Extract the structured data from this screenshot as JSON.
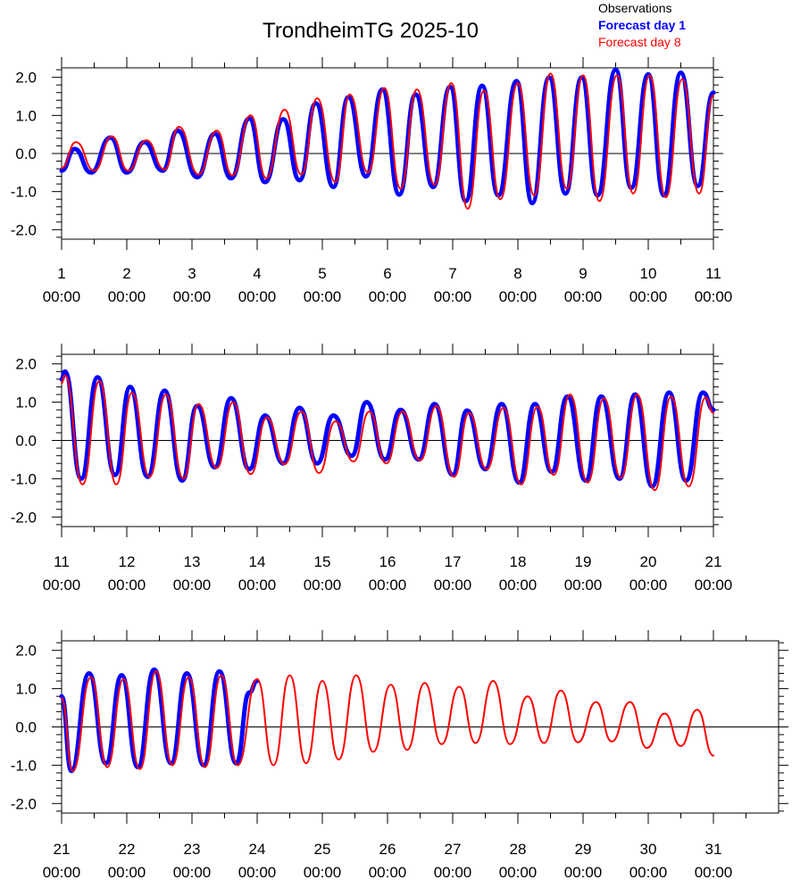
{
  "title": "TrondheimTG 2025-10",
  "legend": [
    {
      "label": "Observations",
      "color": "#000000",
      "bold": false
    },
    {
      "label": "Forecast day 1",
      "color": "#0000ff",
      "bold": true
    },
    {
      "label": "Forecast day 8",
      "color": "#ff0000",
      "bold": false
    }
  ],
  "chart_data": [
    {
      "type": "line",
      "panel": 1,
      "ylim": [
        -2.25,
        2.25
      ],
      "yticks": [
        "2.0",
        "1.0",
        "0.0",
        "-1.0",
        "-2.0"
      ],
      "yvalues": [
        2,
        1,
        0,
        -1,
        -2
      ],
      "xlim": [
        1,
        11
      ],
      "xticks": [
        {
          "day": "1",
          "time": "00:00"
        },
        {
          "day": "2",
          "time": "00:00"
        },
        {
          "day": "3",
          "time": "00:00"
        },
        {
          "day": "4",
          "time": "00:00"
        },
        {
          "day": "5",
          "time": "00:00"
        },
        {
          "day": "6",
          "time": "00:00"
        },
        {
          "day": "7",
          "time": "00:00"
        },
        {
          "day": "8",
          "time": "00:00"
        },
        {
          "day": "9",
          "time": "00:00"
        },
        {
          "day": "10",
          "time": "00:00"
        },
        {
          "day": "11",
          "time": "00:00"
        }
      ],
      "series": [
        {
          "name": "Forecast day 1",
          "color": "#0000ff",
          "x": [
            1.0,
            1.2,
            1.45,
            1.75,
            2.0,
            2.27,
            2.55,
            2.78,
            3.08,
            3.35,
            3.6,
            3.88,
            4.12,
            4.4,
            4.65,
            4.9,
            5.17,
            5.4,
            5.67,
            5.92,
            6.18,
            6.43,
            6.7,
            6.96,
            7.2,
            7.45,
            7.7,
            7.98,
            8.22,
            8.48,
            8.73,
            8.98,
            9.22,
            9.5,
            9.74,
            10.0,
            10.24,
            10.5,
            10.76,
            11.0
          ],
          "y": [
            -0.45,
            0.12,
            -0.5,
            0.42,
            -0.5,
            0.3,
            -0.45,
            0.6,
            -0.62,
            0.52,
            -0.65,
            0.92,
            -0.75,
            0.9,
            -0.7,
            1.32,
            -0.88,
            1.48,
            -0.6,
            1.68,
            -1.08,
            1.55,
            -0.88,
            1.75,
            -1.25,
            1.78,
            -1.1,
            1.9,
            -1.3,
            2.0,
            -1.05,
            2.0,
            -1.1,
            2.2,
            -0.9,
            2.08,
            -1.1,
            2.12,
            -0.85,
            1.6
          ]
        },
        {
          "name": "Forecast day 8",
          "color": "#ff0000",
          "x": [
            1.0,
            1.22,
            1.5,
            1.77,
            2.02,
            2.3,
            2.58,
            2.8,
            3.1,
            3.38,
            3.62,
            3.9,
            4.14,
            4.42,
            4.68,
            4.92,
            5.2,
            5.42,
            5.7,
            5.95,
            6.2,
            6.45,
            6.72,
            6.98,
            7.23,
            7.48,
            7.73,
            8.0,
            8.25,
            8.5,
            8.75,
            9.0,
            9.25,
            9.52,
            9.77,
            10.02,
            10.27,
            10.52,
            10.78,
            11.0
          ],
          "y": [
            -0.38,
            0.3,
            -0.45,
            0.45,
            -0.45,
            0.35,
            -0.42,
            0.7,
            -0.55,
            0.6,
            -0.58,
            1.0,
            -0.65,
            1.15,
            -0.55,
            1.45,
            -0.75,
            1.55,
            -0.5,
            1.72,
            -0.92,
            1.68,
            -0.82,
            1.85,
            -1.45,
            1.65,
            -1.2,
            1.85,
            -1.1,
            2.1,
            -0.92,
            2.05,
            -1.25,
            2.05,
            -1.05,
            2.05,
            -1.15,
            1.95,
            -1.05,
            1.52
          ]
        }
      ]
    },
    {
      "type": "line",
      "panel": 2,
      "ylim": [
        -2.25,
        2.25
      ],
      "yticks": [
        "2.0",
        "1.0",
        "0.0",
        "-1.0",
        "-2.0"
      ],
      "yvalues": [
        2,
        1,
        0,
        -1,
        -2
      ],
      "xlim": [
        11,
        21
      ],
      "xticks": [
        {
          "day": "11",
          "time": "00:00"
        },
        {
          "day": "12",
          "time": "00:00"
        },
        {
          "day": "13",
          "time": "00:00"
        },
        {
          "day": "14",
          "time": "00:00"
        },
        {
          "day": "15",
          "time": "00:00"
        },
        {
          "day": "16",
          "time": "00:00"
        },
        {
          "day": "17",
          "time": "00:00"
        },
        {
          "day": "18",
          "time": "00:00"
        },
        {
          "day": "19",
          "time": "00:00"
        },
        {
          "day": "20",
          "time": "00:00"
        },
        {
          "day": "21",
          "time": "00:00"
        }
      ],
      "series": [
        {
          "name": "Forecast day 1",
          "color": "#0000ff",
          "x": [
            11.0,
            11.05,
            11.3,
            11.55,
            11.82,
            12.05,
            12.32,
            12.58,
            12.85,
            13.08,
            13.35,
            13.6,
            13.88,
            14.12,
            14.4,
            14.65,
            14.92,
            15.17,
            15.45,
            15.68,
            15.96,
            16.2,
            16.48,
            16.72,
            17.0,
            17.22,
            17.5,
            17.75,
            18.02,
            18.26,
            18.52,
            18.76,
            19.04,
            19.28,
            19.56,
            19.8,
            20.06,
            20.32,
            20.58,
            20.84,
            21.0
          ],
          "y": [
            1.6,
            1.8,
            -1.0,
            1.65,
            -0.9,
            1.4,
            -0.95,
            1.3,
            -1.05,
            0.9,
            -0.7,
            1.1,
            -0.75,
            0.65,
            -0.6,
            0.85,
            -0.6,
            0.65,
            -0.4,
            1.0,
            -0.5,
            0.8,
            -0.5,
            0.95,
            -0.9,
            0.78,
            -0.75,
            0.95,
            -1.1,
            0.95,
            -0.82,
            1.15,
            -1.05,
            1.15,
            -1.0,
            1.2,
            -1.2,
            1.25,
            -1.05,
            1.25,
            0.8
          ]
        },
        {
          "name": "Forecast day 8",
          "color": "#ff0000",
          "x": [
            11.0,
            11.05,
            11.32,
            11.58,
            11.84,
            12.08,
            12.35,
            12.6,
            12.87,
            13.1,
            13.38,
            13.63,
            13.9,
            14.15,
            14.42,
            14.68,
            14.95,
            15.2,
            15.48,
            15.72,
            15.98,
            16.23,
            16.5,
            16.75,
            17.02,
            17.25,
            17.52,
            17.78,
            18.05,
            18.3,
            18.55,
            18.8,
            19.07,
            19.32,
            19.58,
            19.83,
            20.1,
            20.35,
            20.62,
            20.88,
            21.0
          ],
          "y": [
            1.5,
            1.7,
            -1.15,
            1.55,
            -1.15,
            1.25,
            -0.95,
            1.2,
            -1.0,
            0.95,
            -0.72,
            1.0,
            -0.88,
            0.6,
            -0.62,
            0.75,
            -0.85,
            0.5,
            -0.55,
            0.75,
            -0.6,
            0.75,
            -0.52,
            0.9,
            -0.95,
            0.72,
            -0.75,
            0.85,
            -1.15,
            0.88,
            -0.9,
            1.2,
            -1.1,
            1.1,
            -0.98,
            1.2,
            -1.3,
            1.15,
            -1.2,
            1.12,
            0.72
          ]
        }
      ]
    },
    {
      "type": "line",
      "panel": 3,
      "ylim": [
        -2.25,
        2.25
      ],
      "yticks": [
        "2.0",
        "1.0",
        "0.0",
        "-1.0",
        "-2.0"
      ],
      "yvalues": [
        2,
        1,
        0,
        -1,
        -2
      ],
      "xlim": [
        21,
        32
      ],
      "xticks": [
        {
          "day": "21",
          "time": "00:00"
        },
        {
          "day": "22",
          "time": "00:00"
        },
        {
          "day": "23",
          "time": "00:00"
        },
        {
          "day": "24",
          "time": "00:00"
        },
        {
          "day": "25",
          "time": "00:00"
        },
        {
          "day": "26",
          "time": "00:00"
        },
        {
          "day": "27",
          "time": "00:00"
        },
        {
          "day": "28",
          "time": "00:00"
        },
        {
          "day": "29",
          "time": "00:00"
        },
        {
          "day": "30",
          "time": "00:00"
        },
        {
          "day": "31",
          "time": "00:00"
        }
      ],
      "series": [
        {
          "name": "Forecast day 1",
          "color": "#0000ff",
          "x": [
            21.0,
            21.15,
            21.42,
            21.68,
            21.92,
            22.17,
            22.42,
            22.68,
            22.92,
            23.18,
            23.42,
            23.68,
            23.88,
            24.0
          ],
          "y": [
            0.8,
            -1.15,
            1.4,
            -0.95,
            1.35,
            -1.05,
            1.5,
            -0.95,
            1.4,
            -1.0,
            1.45,
            -0.95,
            0.9,
            1.2
          ]
        },
        {
          "name": "Forecast day 8",
          "color": "#ff0000",
          "x": [
            21.0,
            21.17,
            21.45,
            21.7,
            21.95,
            22.2,
            22.45,
            22.7,
            22.95,
            23.2,
            23.45,
            23.7,
            24.0,
            24.25,
            24.5,
            24.75,
            25.0,
            25.25,
            25.52,
            25.78,
            26.05,
            26.3,
            26.57,
            26.83,
            27.1,
            27.35,
            27.62,
            27.88,
            28.15,
            28.4,
            28.66,
            28.92,
            29.2,
            29.44,
            29.72,
            29.98,
            30.25,
            30.5,
            30.75,
            31.0
          ],
          "y": [
            0.75,
            -1.15,
            1.3,
            -1.05,
            1.25,
            -1.1,
            1.45,
            -1.0,
            1.3,
            -1.05,
            1.35,
            -1.0,
            1.25,
            -1.0,
            1.35,
            -0.95,
            1.2,
            -0.85,
            1.35,
            -0.65,
            1.1,
            -0.6,
            1.15,
            -0.45,
            1.05,
            -0.42,
            1.2,
            -0.45,
            0.8,
            -0.42,
            0.95,
            -0.4,
            0.65,
            -0.38,
            0.65,
            -0.55,
            0.35,
            -0.5,
            0.45,
            -0.75
          ]
        }
      ]
    }
  ]
}
